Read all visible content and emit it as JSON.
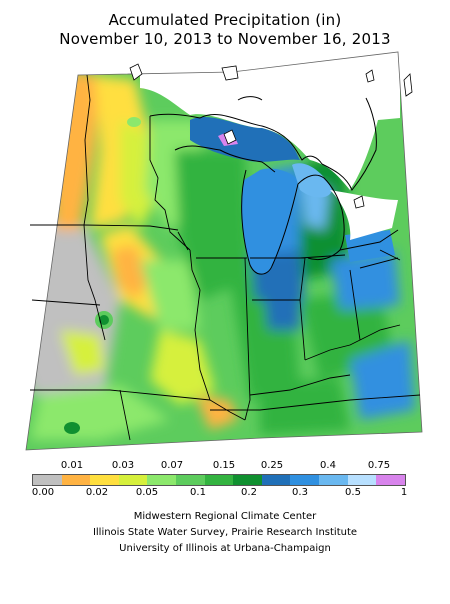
{
  "title": {
    "line1": "Accumulated Precipitation (in)",
    "line2": "November 10, 2013 to November 16, 2013"
  },
  "legend": {
    "upper_labels": [
      "0.01",
      "0.03",
      "0.07",
      "0.15",
      "0.25",
      "0.4",
      "0.75"
    ],
    "lower_labels": [
      "0.00",
      "0.02",
      "0.05",
      "0.1",
      "0.2",
      "0.3",
      "0.5",
      "1"
    ],
    "colors": [
      "#c0c0c0",
      "#ffb343",
      "#ffdf3f",
      "#d6f03c",
      "#8ce86c",
      "#5dcc5d",
      "#33b340",
      "#109030",
      "#2070b8",
      "#3090e0",
      "#6ab8f0",
      "#b8e0ff",
      "#d884ec"
    ]
  },
  "credits": {
    "line1": "Midwestern Regional Climate Center",
    "line2": "Illinois State Water Survey, Prairie Research Institute",
    "line3": "University of Illinois at Urbana-Champaign"
  }
}
